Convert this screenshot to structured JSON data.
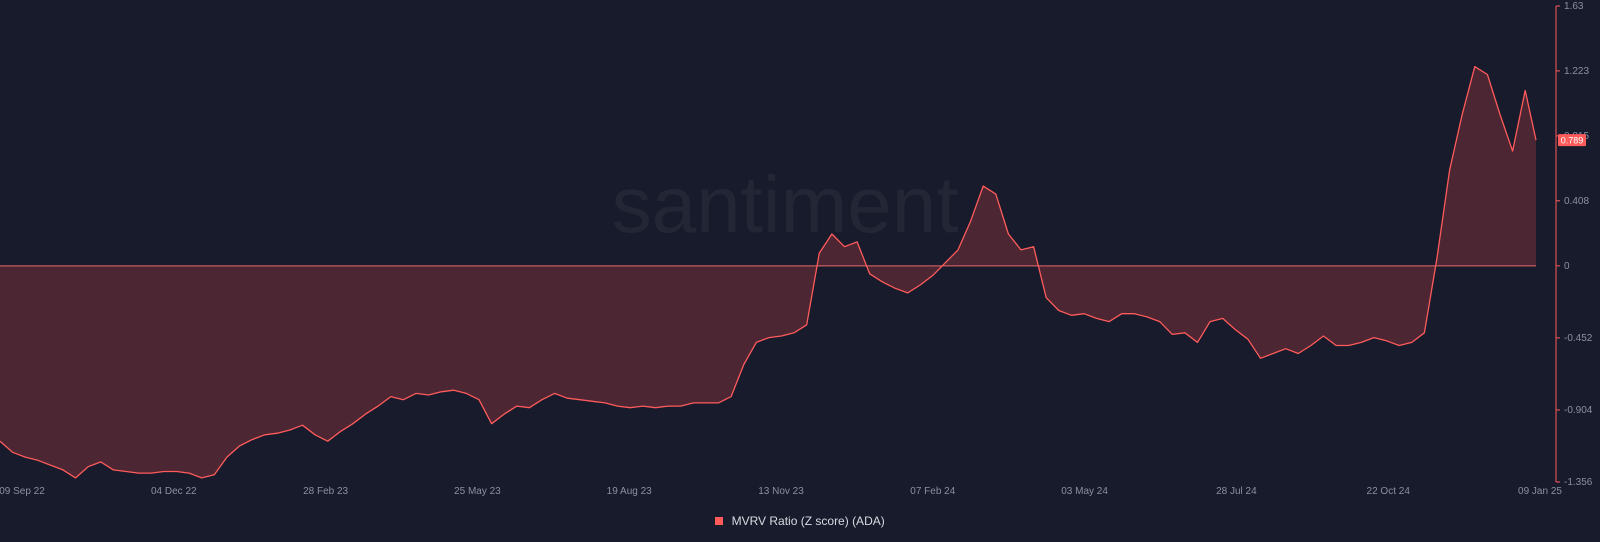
{
  "watermark": "santiment",
  "colors": {
    "background": "#181b2b",
    "line": "#ff5b5b",
    "fill": "rgba(120, 48, 58, 0.55)",
    "zero_line": "#e86a6a",
    "axis_text": "#8a8fa3",
    "current_label_bg": "#ff5b5b"
  },
  "legend": {
    "label": "MVRV Ratio (Z score) (ADA)"
  },
  "current_value_label": "0.789",
  "chart_data": {
    "type": "area",
    "title": "",
    "xlabel": "",
    "ylabel": "",
    "ylim": [
      -1.356,
      1.63
    ],
    "y_ticks": [
      "1.63",
      "1.223",
      "0.815",
      "0.408",
      "0",
      "-0.452",
      "-0.904",
      "-1.356"
    ],
    "x_ticks": [
      "09 Sep 22",
      "04 Dec 22",
      "28 Feb 23",
      "25 May 23",
      "19 Aug 23",
      "13 Nov 23",
      "07 Feb 24",
      "03 May 24",
      "28 Jul 24",
      "22 Oct 24",
      "09 Jan 25"
    ],
    "x_start": "2022-09-09",
    "x_end": "2025-01-09",
    "grid": false,
    "legend_position": "bottom-center",
    "series": [
      {
        "name": "MVRV Ratio (Z score) (ADA)",
        "points": [
          [
            "2022-09-09",
            -1.1
          ],
          [
            "2022-09-16",
            -1.17
          ],
          [
            "2022-09-23",
            -1.2
          ],
          [
            "2022-09-30",
            -1.22
          ],
          [
            "2022-10-07",
            -1.25
          ],
          [
            "2022-10-14",
            -1.28
          ],
          [
            "2022-10-21",
            -1.33
          ],
          [
            "2022-10-28",
            -1.26
          ],
          [
            "2022-11-04",
            -1.23
          ],
          [
            "2022-11-11",
            -1.28
          ],
          [
            "2022-11-18",
            -1.29
          ],
          [
            "2022-11-25",
            -1.3
          ],
          [
            "2022-12-02",
            -1.3
          ],
          [
            "2022-12-09",
            -1.29
          ],
          [
            "2022-12-16",
            -1.29
          ],
          [
            "2022-12-23",
            -1.3
          ],
          [
            "2022-12-30",
            -1.33
          ],
          [
            "2023-01-06",
            -1.31
          ],
          [
            "2023-01-13",
            -1.2
          ],
          [
            "2023-01-20",
            -1.13
          ],
          [
            "2023-01-27",
            -1.09
          ],
          [
            "2023-02-03",
            -1.06
          ],
          [
            "2023-02-10",
            -1.05
          ],
          [
            "2023-02-17",
            -1.03
          ],
          [
            "2023-02-24",
            -1.0
          ],
          [
            "2023-03-03",
            -1.06
          ],
          [
            "2023-03-10",
            -1.1
          ],
          [
            "2023-03-17",
            -1.04
          ],
          [
            "2023-03-24",
            -0.99
          ],
          [
            "2023-03-31",
            -0.93
          ],
          [
            "2023-04-07",
            -0.88
          ],
          [
            "2023-04-14",
            -0.82
          ],
          [
            "2023-04-21",
            -0.84
          ],
          [
            "2023-04-28",
            -0.8
          ],
          [
            "2023-05-05",
            -0.81
          ],
          [
            "2023-05-12",
            -0.79
          ],
          [
            "2023-05-19",
            -0.78
          ],
          [
            "2023-05-26",
            -0.8
          ],
          [
            "2023-06-02",
            -0.84
          ],
          [
            "2023-06-09",
            -0.99
          ],
          [
            "2023-06-16",
            -0.93
          ],
          [
            "2023-06-23",
            -0.88
          ],
          [
            "2023-06-30",
            -0.89
          ],
          [
            "2023-07-07",
            -0.84
          ],
          [
            "2023-07-14",
            -0.8
          ],
          [
            "2023-07-21",
            -0.83
          ],
          [
            "2023-07-28",
            -0.84
          ],
          [
            "2023-08-04",
            -0.85
          ],
          [
            "2023-08-11",
            -0.86
          ],
          [
            "2023-08-18",
            -0.88
          ],
          [
            "2023-08-25",
            -0.89
          ],
          [
            "2023-09-01",
            -0.88
          ],
          [
            "2023-09-08",
            -0.89
          ],
          [
            "2023-09-15",
            -0.88
          ],
          [
            "2023-09-22",
            -0.88
          ],
          [
            "2023-09-29",
            -0.86
          ],
          [
            "2023-10-06",
            -0.86
          ],
          [
            "2023-10-13",
            -0.86
          ],
          [
            "2023-10-20",
            -0.82
          ],
          [
            "2023-10-27",
            -0.62
          ],
          [
            "2023-11-03",
            -0.48
          ],
          [
            "2023-11-10",
            -0.45
          ],
          [
            "2023-11-17",
            -0.44
          ],
          [
            "2023-11-24",
            -0.42
          ],
          [
            "2023-12-01",
            -0.37
          ],
          [
            "2023-12-08",
            0.08
          ],
          [
            "2023-12-15",
            0.2
          ],
          [
            "2023-12-22",
            0.12
          ],
          [
            "2023-12-29",
            0.15
          ],
          [
            "2024-01-05",
            -0.05
          ],
          [
            "2024-01-12",
            -0.1
          ],
          [
            "2024-01-19",
            -0.14
          ],
          [
            "2024-01-26",
            -0.17
          ],
          [
            "2024-02-02",
            -0.12
          ],
          [
            "2024-02-09",
            -0.06
          ],
          [
            "2024-02-16",
            0.02
          ],
          [
            "2024-02-23",
            0.1
          ],
          [
            "2024-03-01",
            0.28
          ],
          [
            "2024-03-08",
            0.5
          ],
          [
            "2024-03-15",
            0.45
          ],
          [
            "2024-03-22",
            0.2
          ],
          [
            "2024-03-29",
            0.1
          ],
          [
            "2024-04-05",
            0.12
          ],
          [
            "2024-04-12",
            -0.2
          ],
          [
            "2024-04-19",
            -0.28
          ],
          [
            "2024-04-26",
            -0.31
          ],
          [
            "2024-05-03",
            -0.3
          ],
          [
            "2024-05-10",
            -0.33
          ],
          [
            "2024-05-17",
            -0.35
          ],
          [
            "2024-05-24",
            -0.3
          ],
          [
            "2024-05-31",
            -0.3
          ],
          [
            "2024-06-07",
            -0.32
          ],
          [
            "2024-06-14",
            -0.35
          ],
          [
            "2024-06-21",
            -0.43
          ],
          [
            "2024-06-28",
            -0.42
          ],
          [
            "2024-07-05",
            -0.48
          ],
          [
            "2024-07-12",
            -0.35
          ],
          [
            "2024-07-19",
            -0.33
          ],
          [
            "2024-07-26",
            -0.4
          ],
          [
            "2024-08-02",
            -0.46
          ],
          [
            "2024-08-09",
            -0.58
          ],
          [
            "2024-08-16",
            -0.55
          ],
          [
            "2024-08-23",
            -0.52
          ],
          [
            "2024-08-30",
            -0.55
          ],
          [
            "2024-09-06",
            -0.5
          ],
          [
            "2024-09-13",
            -0.44
          ],
          [
            "2024-09-20",
            -0.5
          ],
          [
            "2024-09-27",
            -0.5
          ],
          [
            "2024-10-04",
            -0.48
          ],
          [
            "2024-10-11",
            -0.45
          ],
          [
            "2024-10-18",
            -0.47
          ],
          [
            "2024-10-25",
            -0.5
          ],
          [
            "2024-11-01",
            -0.48
          ],
          [
            "2024-11-08",
            -0.42
          ],
          [
            "2024-11-15",
            0.05
          ],
          [
            "2024-11-22",
            0.6
          ],
          [
            "2024-11-29",
            0.95
          ],
          [
            "2024-12-06",
            1.25
          ],
          [
            "2024-12-13",
            1.2
          ],
          [
            "2024-12-20",
            0.95
          ],
          [
            "2024-12-27",
            0.72
          ],
          [
            "2025-01-03",
            1.1
          ],
          [
            "2025-01-09",
            0.789
          ]
        ]
      }
    ]
  }
}
